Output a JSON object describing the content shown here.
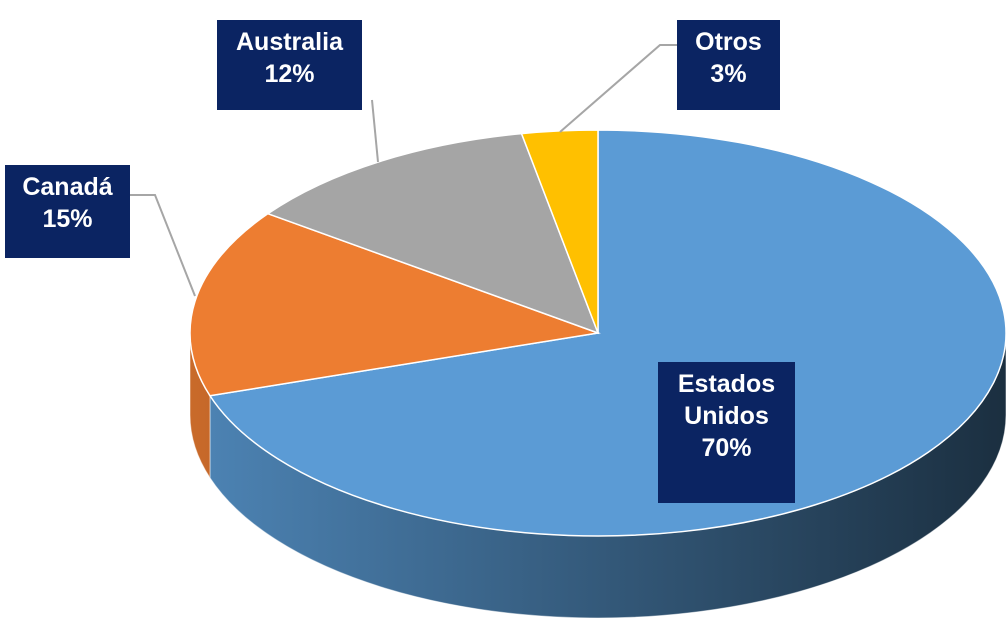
{
  "chart_data": {
    "type": "pie",
    "categories": [
      "Estados Unidos",
      "Canadá",
      "Australia",
      "Otros"
    ],
    "values": [
      70,
      15,
      12,
      3
    ],
    "value_labels": [
      "70%",
      "15%",
      "12%",
      "3%"
    ],
    "colors": [
      "#5b9bd5",
      "#ed7d31",
      "#a5a5a5",
      "#ffc000"
    ],
    "start_angle": 0,
    "direction": "clockwise",
    "three_d": true
  }
}
